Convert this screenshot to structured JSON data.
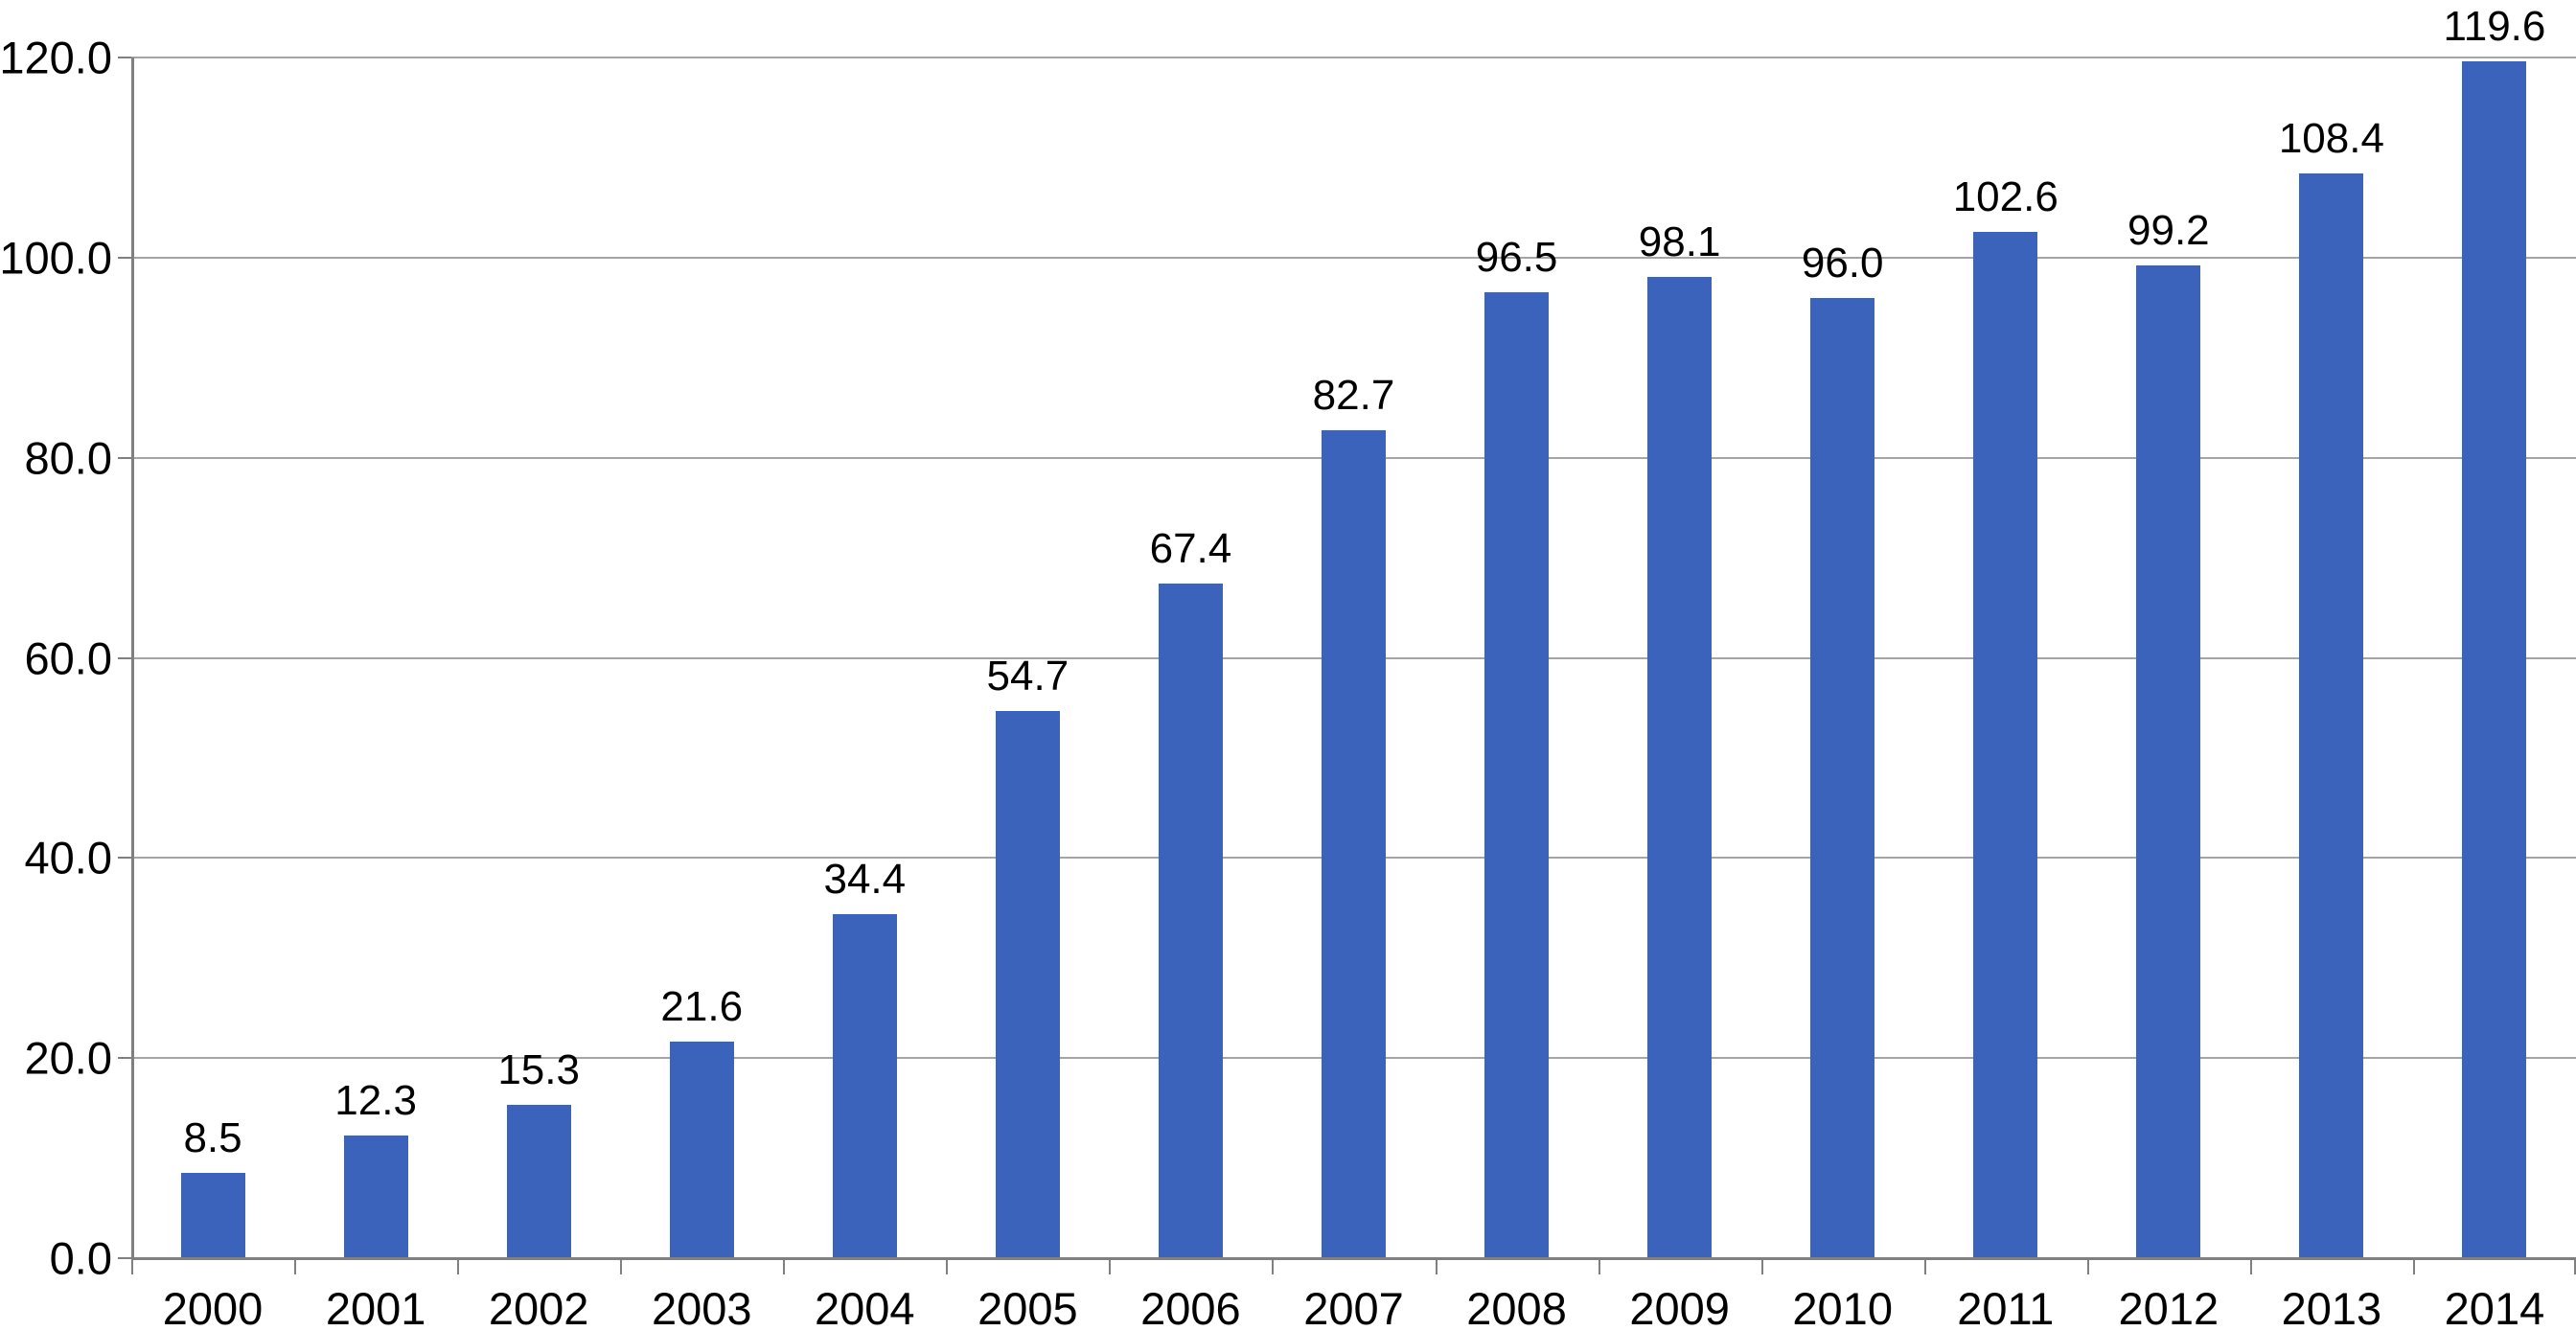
{
  "chart_data": {
    "type": "bar",
    "title": "",
    "xlabel": "",
    "ylabel": "",
    "categories": [
      "2000",
      "2001",
      "2002",
      "2003",
      "2004",
      "2005",
      "2006",
      "2007",
      "2008",
      "2009",
      "2010",
      "2011",
      "2012",
      "2013",
      "2014"
    ],
    "values": [
      8.5,
      12.3,
      15.3,
      21.6,
      34.4,
      54.7,
      67.4,
      82.7,
      96.5,
      98.1,
      96.0,
      102.6,
      99.2,
      108.4,
      119.6
    ],
    "value_labels": [
      "8.5",
      "12.3",
      "15.3",
      "21.6",
      "34.4",
      "54.7",
      "67.4",
      "82.7",
      "96.5",
      "98.1",
      "96.0",
      "102.6",
      "99.2",
      "108.4",
      "119.6"
    ],
    "ylim": [
      0,
      120
    ],
    "ytick_step": 20,
    "ytick_labels": [
      "0.0",
      "20.0",
      "40.0",
      "60.0",
      "80.0",
      "100.0",
      "120.0"
    ],
    "grid": true,
    "legend_position": "none",
    "colors": {
      "bar": "#3C63BC",
      "gridline": "#A5A5A5",
      "axis": "#808080",
      "text": "#000000",
      "background": "#FFFFFF"
    }
  }
}
